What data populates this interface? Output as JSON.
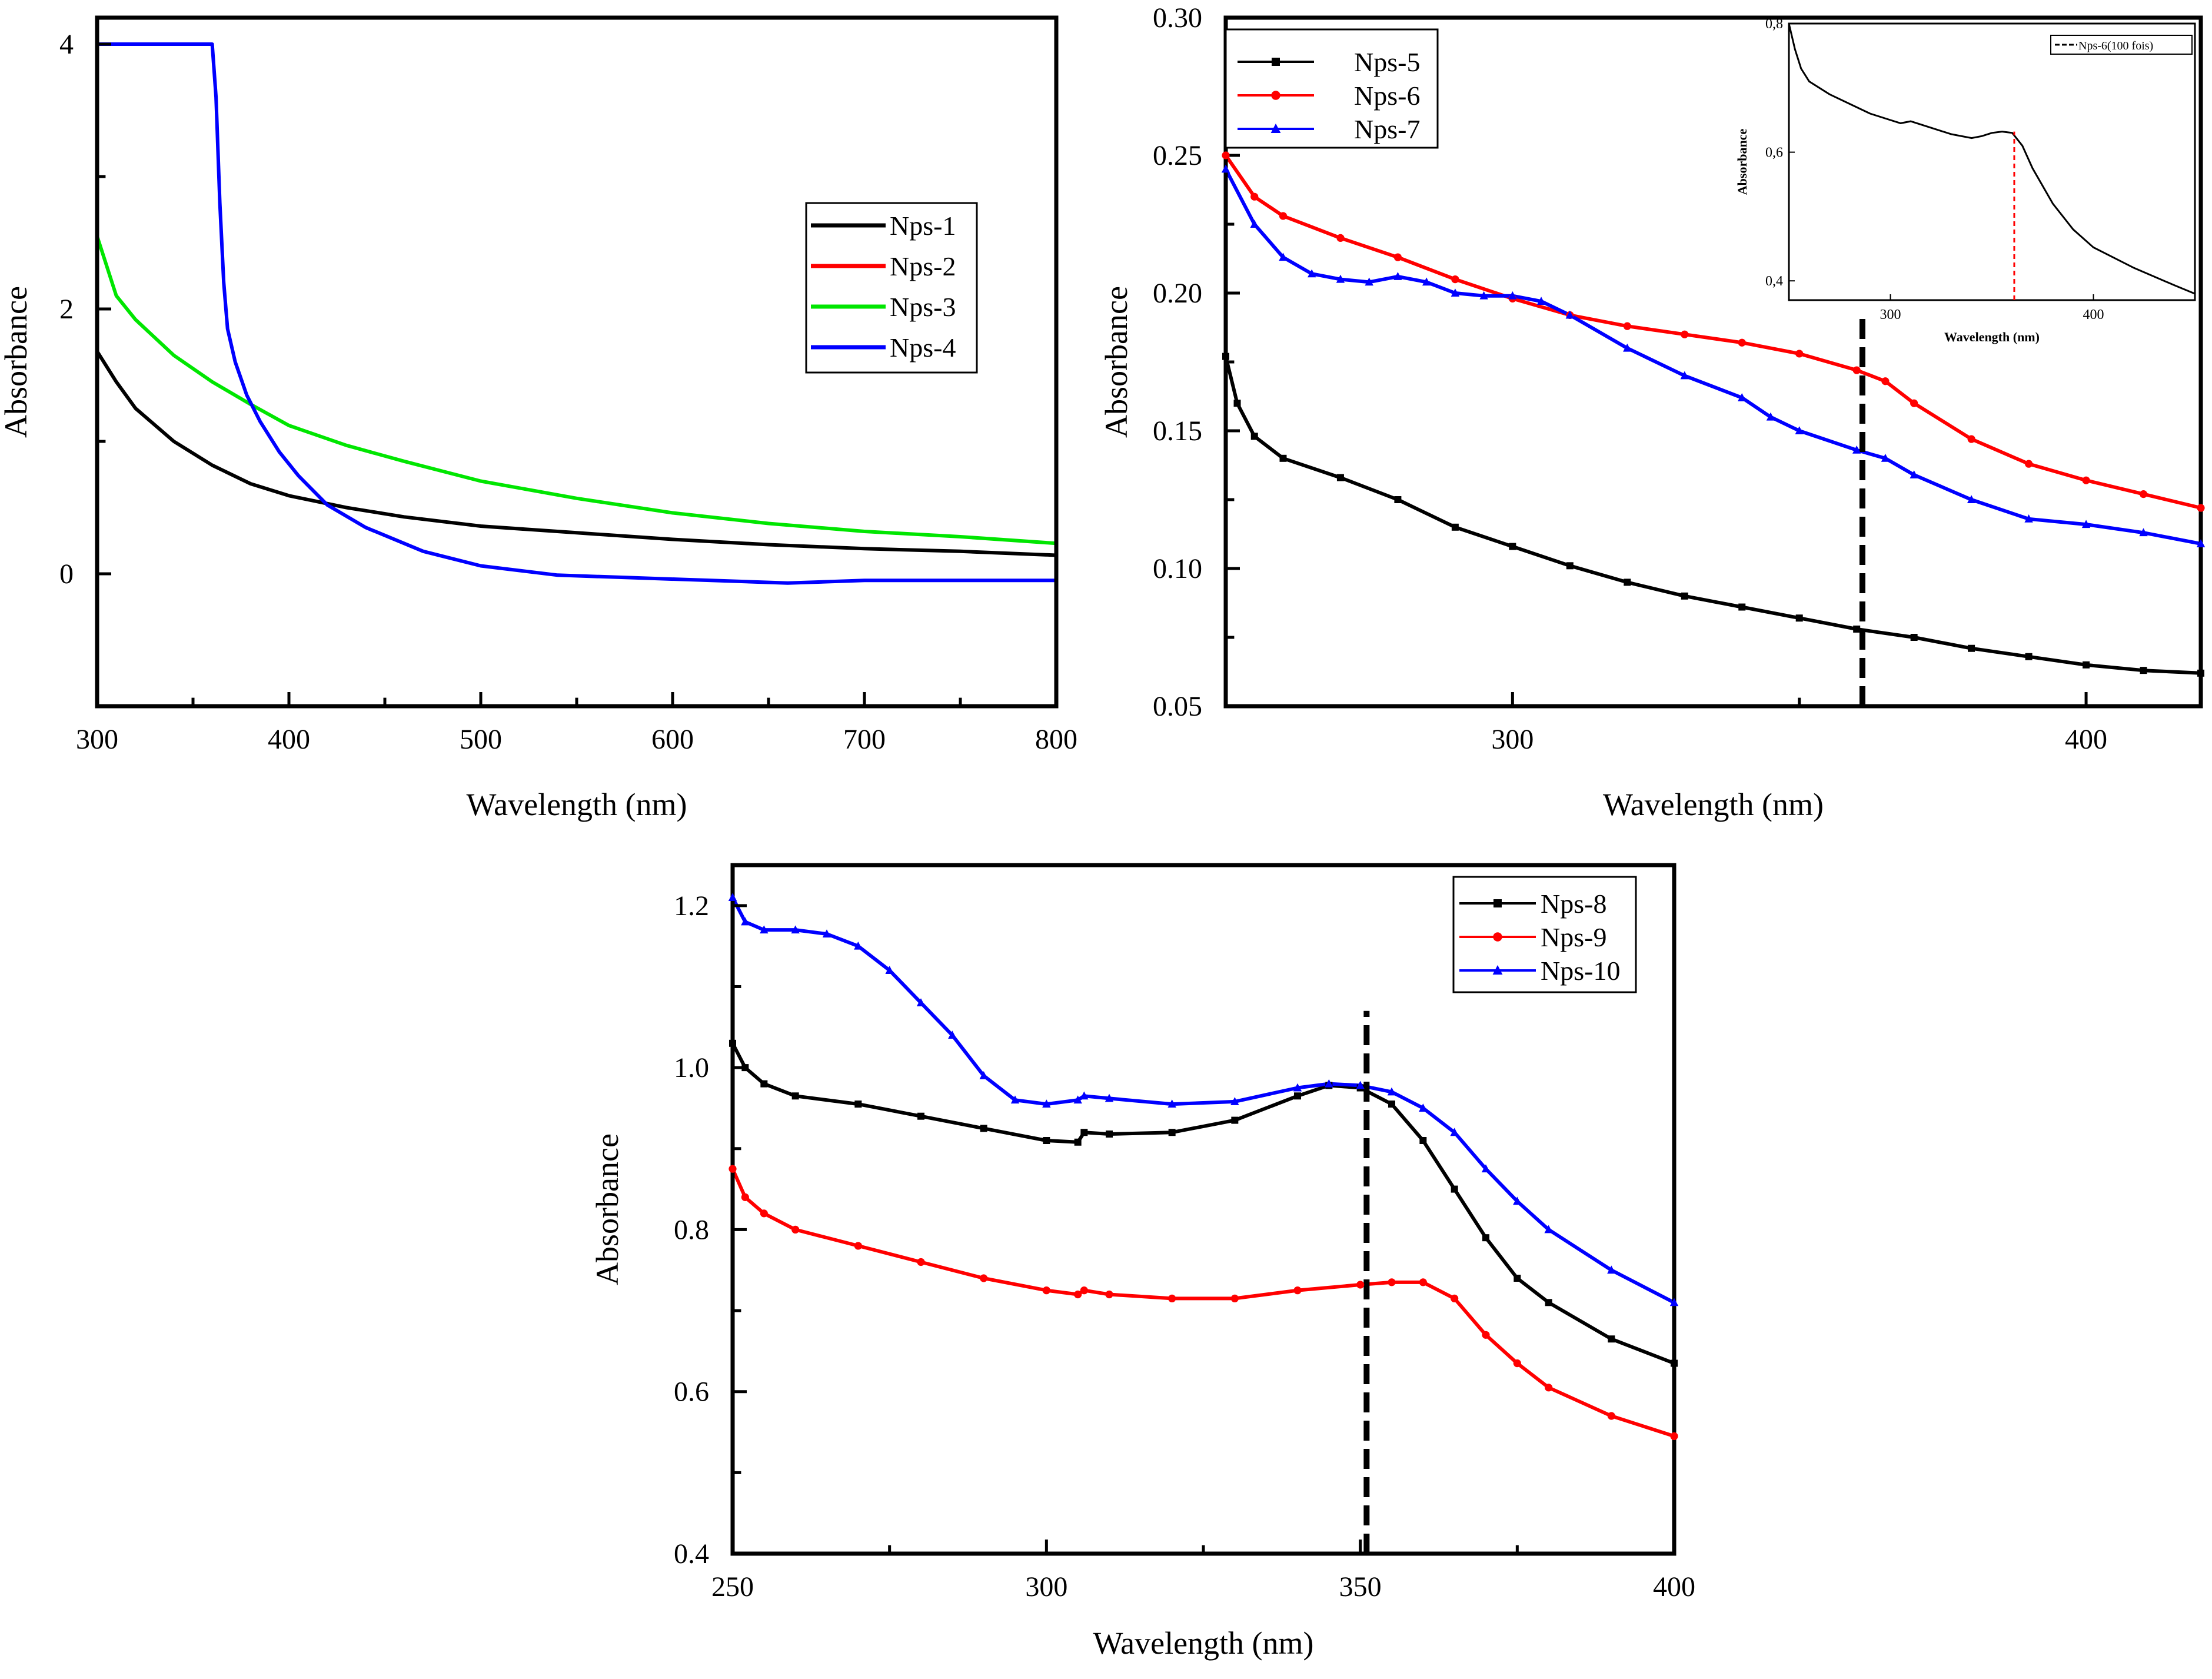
{
  "chart_data": [
    {
      "id": "p1",
      "type": "line",
      "title": "",
      "xlabel": "Wavelength (nm)",
      "ylabel": "Absorbance",
      "xlim": [
        300,
        800
      ],
      "ylim": [
        -1,
        4.2
      ],
      "xticks": [
        300,
        400,
        500,
        600,
        700,
        800
      ],
      "yticks": [
        0,
        2,
        4
      ],
      "grid": false,
      "legend_position": "upper-right",
      "series": [
        {
          "name": "Nps-1",
          "color": "#000000",
          "marker": "none",
          "x": [
            300,
            310,
            320,
            340,
            360,
            380,
            400,
            430,
            460,
            500,
            550,
            600,
            650,
            700,
            750,
            800
          ],
          "y": [
            1.68,
            1.45,
            1.25,
            1.0,
            0.82,
            0.68,
            0.59,
            0.5,
            0.43,
            0.36,
            0.31,
            0.26,
            0.22,
            0.19,
            0.17,
            0.14
          ]
        },
        {
          "name": "Nps-2",
          "color": "#ff0000",
          "marker": "none",
          "x": [],
          "y": []
        },
        {
          "name": "Nps-3",
          "color": "#00e600",
          "marker": "none",
          "x": [
            300,
            310,
            320,
            340,
            360,
            380,
            400,
            430,
            460,
            500,
            550,
            600,
            650,
            700,
            750,
            800
          ],
          "y": [
            2.55,
            2.1,
            1.92,
            1.65,
            1.45,
            1.28,
            1.12,
            0.97,
            0.85,
            0.7,
            0.57,
            0.46,
            0.38,
            0.32,
            0.28,
            0.23
          ]
        },
        {
          "name": "Nps-4",
          "color": "#0000ff",
          "marker": "none",
          "x": [
            300,
            330,
            360,
            362,
            364,
            366,
            368,
            372,
            378,
            385,
            395,
            405,
            420,
            440,
            470,
            500,
            540,
            580,
            640,
            660,
            700,
            750,
            800
          ],
          "y": [
            4.0,
            4.0,
            4.0,
            3.6,
            2.8,
            2.2,
            1.85,
            1.6,
            1.35,
            1.15,
            0.92,
            0.74,
            0.52,
            0.35,
            0.17,
            0.06,
            -0.01,
            -0.03,
            -0.06,
            -0.07,
            -0.05,
            -0.05,
            -0.05
          ]
        }
      ]
    },
    {
      "id": "p2",
      "type": "line",
      "title": "",
      "xlabel": "Wavelength (nm)",
      "ylabel": "Absorbance",
      "xlim": [
        250,
        420
      ],
      "ylim": [
        0.05,
        0.3
      ],
      "xticks": [
        300,
        400
      ],
      "yticks": [
        0.05,
        0.1,
        0.15,
        0.2,
        0.25,
        0.3
      ],
      "ytick_labels": [
        "0.05",
        "0.10",
        "0.15",
        "0.20",
        "0.25",
        "0.30"
      ],
      "grid": false,
      "legend_position": "upper-left",
      "vline": {
        "x": 361,
        "y_from": 0.05,
        "y_to": 0.193
      },
      "series": [
        {
          "name": "Nps-5",
          "color": "#000000",
          "marker": "square",
          "x": [
            250,
            252,
            255,
            260,
            270,
            280,
            290,
            300,
            310,
            320,
            330,
            340,
            350,
            360,
            370,
            380,
            390,
            400,
            410,
            420
          ],
          "y": [
            0.177,
            0.16,
            0.148,
            0.14,
            0.133,
            0.125,
            0.115,
            0.108,
            0.101,
            0.095,
            0.09,
            0.086,
            0.082,
            0.078,
            0.075,
            0.071,
            0.068,
            0.065,
            0.063,
            0.062
          ]
        },
        {
          "name": "Nps-6",
          "color": "#ff0000",
          "marker": "circle",
          "x": [
            250,
            255,
            260,
            270,
            280,
            290,
            300,
            310,
            320,
            330,
            340,
            350,
            360,
            365,
            370,
            380,
            390,
            400,
            410,
            420
          ],
          "y": [
            0.25,
            0.235,
            0.228,
            0.22,
            0.213,
            0.205,
            0.198,
            0.192,
            0.188,
            0.185,
            0.182,
            0.178,
            0.172,
            0.168,
            0.16,
            0.147,
            0.138,
            0.132,
            0.127,
            0.122
          ]
        },
        {
          "name": "Nps-7",
          "color": "#0000ff",
          "marker": "triangle",
          "x": [
            250,
            255,
            260,
            265,
            270,
            275,
            280,
            285,
            290,
            295,
            300,
            305,
            310,
            320,
            330,
            340,
            345,
            350,
            360,
            365,
            370,
            380,
            390,
            400,
            410,
            420
          ],
          "y": [
            0.245,
            0.225,
            0.213,
            0.207,
            0.205,
            0.204,
            0.206,
            0.204,
            0.2,
            0.199,
            0.199,
            0.197,
            0.192,
            0.18,
            0.17,
            0.162,
            0.155,
            0.15,
            0.143,
            0.14,
            0.134,
            0.125,
            0.118,
            0.116,
            0.113,
            0.109
          ]
        }
      ],
      "inset": {
        "xlim": [
          250,
          450
        ],
        "ylim": [
          0.37,
          0.8
        ],
        "xticks": [
          300,
          400
        ],
        "yticks": [
          0.4,
          0.6,
          0.8
        ],
        "ytick_labels": [
          "0,4",
          "0,6",
          "0,8"
        ],
        "xlabel": "Wavelength (nm)",
        "ylabel": "Absorbance",
        "vline": {
          "x": 361,
          "y_from": 0.37,
          "y_to": 0.632,
          "color": "#ff0000"
        },
        "series": [
          {
            "name": "Nps-6(100 fois)",
            "color": "#000000",
            "x": [
              250,
              253,
              256,
              260,
              270,
              280,
              290,
              300,
              305,
              310,
              320,
              330,
              340,
              345,
              350,
              355,
              360,
              365,
              370,
              380,
              390,
              400,
              420,
              440,
              450
            ],
            "y": [
              0.8,
              0.76,
              0.73,
              0.71,
              0.69,
              0.675,
              0.66,
              0.65,
              0.645,
              0.648,
              0.638,
              0.628,
              0.622,
              0.625,
              0.63,
              0.632,
              0.63,
              0.61,
              0.575,
              0.52,
              0.48,
              0.452,
              0.42,
              0.393,
              0.38
            ]
          }
        ]
      }
    },
    {
      "id": "p3",
      "type": "line",
      "title": "",
      "xlabel": "Wavelength (nm)",
      "ylabel": "Absorbance",
      "xlim": [
        250,
        400
      ],
      "ylim": [
        0.4,
        1.25
      ],
      "xticks": [
        250,
        300,
        350,
        400
      ],
      "yticks": [
        0.4,
        0.6,
        0.8,
        1.0,
        1.2
      ],
      "ytick_labels": [
        "0.4",
        "0.6",
        "0.8",
        "1.0",
        "1.2"
      ],
      "grid": false,
      "legend_position": "upper-right",
      "vline": {
        "x": 351,
        "y_from": 0.4,
        "y_to": 1.07
      },
      "series": [
        {
          "name": "Nps-8",
          "color": "#000000",
          "marker": "square",
          "x": [
            250,
            252,
            255,
            260,
            270,
            280,
            290,
            300,
            305,
            306,
            310,
            320,
            330,
            340,
            345,
            350,
            355,
            360,
            365,
            370,
            375,
            380,
            390,
            400
          ],
          "y": [
            1.03,
            1.0,
            0.98,
            0.965,
            0.955,
            0.94,
            0.925,
            0.91,
            0.908,
            0.92,
            0.918,
            0.92,
            0.935,
            0.965,
            0.978,
            0.975,
            0.955,
            0.91,
            0.85,
            0.79,
            0.74,
            0.71,
            0.665,
            0.635
          ]
        },
        {
          "name": "Nps-9",
          "color": "#ff0000",
          "marker": "circle",
          "x": [
            250,
            252,
            255,
            260,
            270,
            280,
            290,
            300,
            305,
            306,
            310,
            320,
            330,
            340,
            350,
            355,
            360,
            365,
            370,
            375,
            380,
            390,
            400
          ],
          "y": [
            0.875,
            0.84,
            0.82,
            0.8,
            0.78,
            0.76,
            0.74,
            0.725,
            0.72,
            0.725,
            0.72,
            0.715,
            0.715,
            0.725,
            0.732,
            0.735,
            0.735,
            0.715,
            0.67,
            0.635,
            0.605,
            0.57,
            0.545
          ]
        },
        {
          "name": "Nps-10",
          "color": "#0000ff",
          "marker": "triangle",
          "x": [
            250,
            252,
            255,
            260,
            265,
            270,
            275,
            280,
            285,
            290,
            295,
            300,
            305,
            306,
            310,
            320,
            330,
            340,
            345,
            350,
            355,
            360,
            365,
            370,
            375,
            380,
            390,
            400
          ],
          "y": [
            1.21,
            1.18,
            1.17,
            1.17,
            1.165,
            1.15,
            1.12,
            1.08,
            1.04,
            0.99,
            0.96,
            0.955,
            0.96,
            0.965,
            0.962,
            0.955,
            0.958,
            0.975,
            0.98,
            0.978,
            0.97,
            0.95,
            0.92,
            0.875,
            0.835,
            0.8,
            0.75,
            0.71
          ]
        }
      ]
    }
  ]
}
